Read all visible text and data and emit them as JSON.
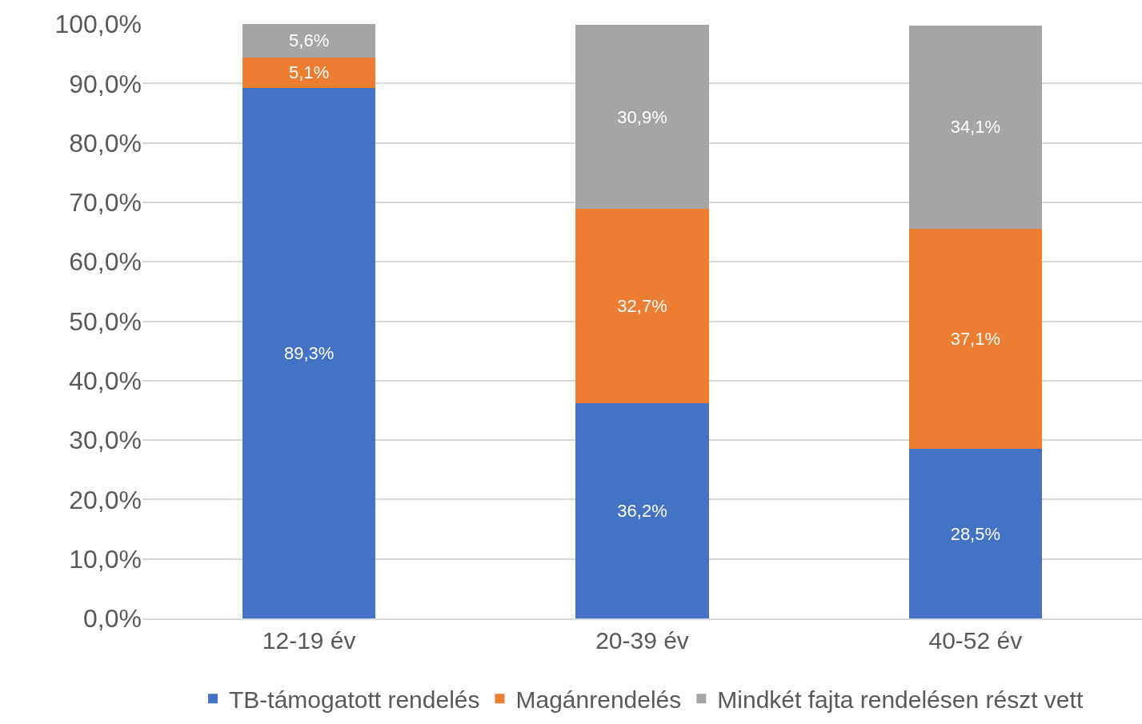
{
  "chart_data": {
    "type": "bar",
    "stacked": true,
    "categories": [
      "12-19 év",
      "20-39 év",
      "40-52 év"
    ],
    "series": [
      {
        "name": "TB-támogatott rendelés",
        "color": "#4472c4",
        "values": [
          89.3,
          36.2,
          28.5
        ],
        "value_labels": [
          "89,3%",
          "36,2%",
          "28,5%"
        ]
      },
      {
        "name": "Magánrendelés",
        "color": "#ed7d31",
        "values": [
          5.1,
          32.7,
          37.1
        ],
        "value_labels": [
          "5,1%",
          "32,7%",
          "37,1%"
        ]
      },
      {
        "name": "Mindkét fajta rendelésen részt vett",
        "color": "#a5a5a5",
        "values": [
          5.6,
          30.9,
          34.1
        ],
        "value_labels": [
          "5,6%",
          "30,9%",
          "34,1%"
        ]
      }
    ],
    "ylim": [
      0,
      100
    ],
    "yticks": [
      {
        "value": 0,
        "label": "0,0%"
      },
      {
        "value": 10,
        "label": "10,0%"
      },
      {
        "value": 20,
        "label": "20,0%"
      },
      {
        "value": 30,
        "label": "30,0%"
      },
      {
        "value": 40,
        "label": "40,0%"
      },
      {
        "value": 50,
        "label": "50,0%"
      },
      {
        "value": 60,
        "label": "60,0%"
      },
      {
        "value": 70,
        "label": "70,0%"
      },
      {
        "value": 80,
        "label": "80,0%"
      },
      {
        "value": 90,
        "label": "90,0%"
      },
      {
        "value": 100,
        "label": "100,0%"
      }
    ],
    "grid": "y",
    "legend": "bottom"
  }
}
